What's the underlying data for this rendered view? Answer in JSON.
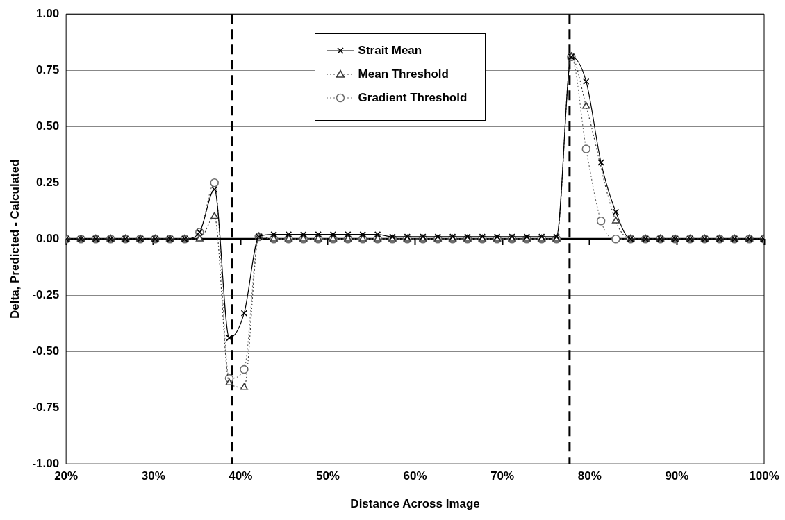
{
  "chart_data": {
    "type": "line",
    "xlabel": "Distance Across Image",
    "ylabel": "Delta, Predicted - Calculated",
    "x": [
      20.0,
      21.7,
      23.4,
      25.1,
      26.8,
      28.5,
      30.2,
      31.9,
      33.6,
      35.3,
      37.0,
      38.7,
      40.4,
      42.1,
      43.8,
      45.5,
      47.2,
      48.9,
      50.6,
      52.3,
      54.0,
      55.7,
      57.4,
      59.1,
      60.9,
      62.6,
      64.3,
      66.0,
      67.7,
      69.4,
      71.1,
      72.8,
      74.5,
      76.2,
      77.9,
      79.6,
      81.3,
      83.0,
      84.7,
      86.4,
      88.1,
      89.8,
      91.5,
      93.2,
      94.9,
      96.6,
      98.3,
      100.0
    ],
    "series": [
      {
        "name": "Strait Mean",
        "color": "#000000",
        "marker": "cross",
        "line_style": "solid",
        "values": [
          0,
          0,
          0,
          0,
          0,
          0,
          0,
          0,
          0,
          0.03,
          0.22,
          -0.44,
          -0.33,
          0.01,
          0.02,
          0.02,
          0.02,
          0.02,
          0.02,
          0.02,
          0.02,
          0.02,
          0.01,
          0.01,
          0.01,
          0.01,
          0.01,
          0.01,
          0.01,
          0.01,
          0.01,
          0.01,
          0.01,
          0.01,
          0.81,
          0.7,
          0.34,
          0.12,
          0,
          0,
          0,
          0,
          0,
          0,
          0,
          0,
          0,
          0
        ]
      },
      {
        "name": "Mean Threshold",
        "color": "#3c3c3c",
        "marker": "triangle",
        "line_style": "dotted",
        "values": [
          0,
          0,
          0,
          0,
          0,
          0,
          0,
          0,
          0,
          0,
          0.1,
          -0.64,
          -0.66,
          0.01,
          0,
          0,
          0,
          0,
          0,
          0,
          0,
          0,
          0,
          0,
          0,
          0,
          0,
          0,
          0,
          0,
          0,
          0,
          0,
          0,
          0.81,
          0.59,
          null,
          0.08,
          0,
          0,
          0,
          0,
          0,
          0,
          0,
          0,
          0,
          0
        ]
      },
      {
        "name": "Gradient Threshold",
        "color": "#6e6e6e",
        "marker": "circle",
        "line_style": "dotted",
        "values": [
          0,
          0,
          0,
          0,
          0,
          0,
          0,
          0,
          0,
          0.03,
          0.25,
          -0.62,
          -0.58,
          0.01,
          0,
          0,
          0,
          0,
          0,
          0,
          0,
          0,
          0,
          0,
          0,
          0,
          0,
          0,
          0,
          0,
          0,
          0,
          0,
          0,
          0.81,
          0.4,
          0.08,
          0,
          0,
          0,
          0,
          0,
          0,
          0,
          0,
          0,
          0,
          0
        ]
      }
    ],
    "xlim": [
      20,
      100
    ],
    "xticks": [
      {
        "value": 20,
        "label": "20%"
      },
      {
        "value": 30,
        "label": "30%"
      },
      {
        "value": 40,
        "label": "40%"
      },
      {
        "value": 50,
        "label": "50%"
      },
      {
        "value": 60,
        "label": "60%"
      },
      {
        "value": 70,
        "label": "70%"
      },
      {
        "value": 80,
        "label": "80%"
      },
      {
        "value": 90,
        "label": "90%"
      },
      {
        "value": 100,
        "label": "100%"
      }
    ],
    "ylim": [
      -1,
      1
    ],
    "yticks": [
      {
        "value": -1,
        "label": "-1.00"
      },
      {
        "value": -0.75,
        "label": "-0.75"
      },
      {
        "value": -0.5,
        "label": "-0.50"
      },
      {
        "value": -0.25,
        "label": "-0.25"
      },
      {
        "value": 0,
        "label": "0.00"
      },
      {
        "value": 0.25,
        "label": "0.25"
      },
      {
        "value": 0.5,
        "label": "0.50"
      },
      {
        "value": 0.75,
        "label": "0.75"
      },
      {
        "value": 1,
        "label": "1.00"
      }
    ],
    "ref_lines": [
      {
        "axis": "y",
        "value": 0,
        "color": "#000000",
        "line_style": "solid"
      },
      {
        "axis": "x",
        "value": 39,
        "color": "#000000",
        "line_style": "dashed"
      },
      {
        "axis": "x",
        "value": 77.7,
        "color": "#000000",
        "line_style": "dashed"
      }
    ],
    "grid": "y",
    "legend": "top"
  }
}
